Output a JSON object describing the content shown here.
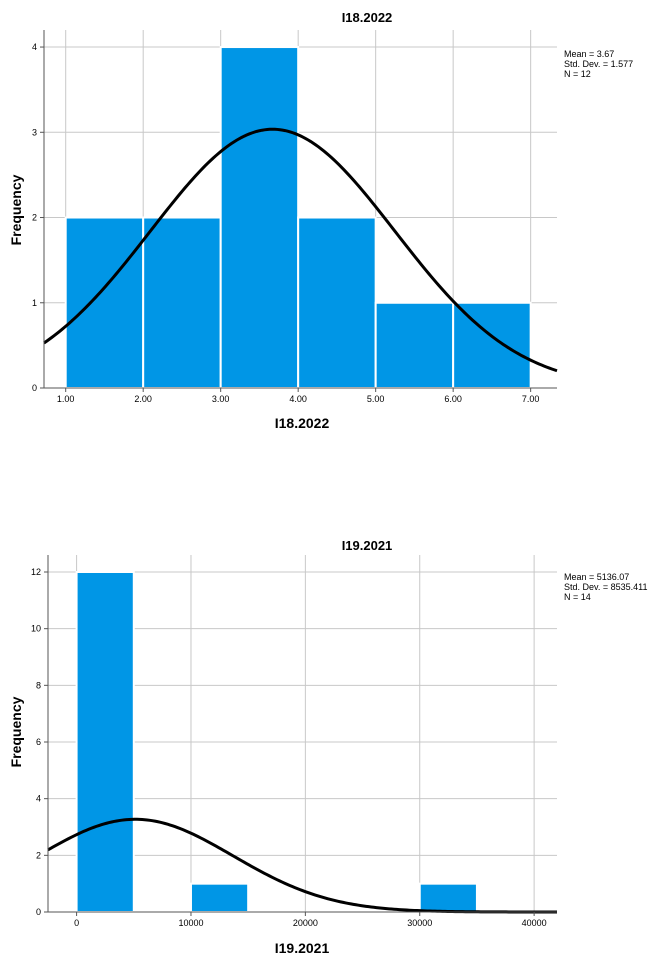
{
  "colors": {
    "bar": "#0096e6",
    "curve": "#000000",
    "grid": "#c8c8c8"
  },
  "chart_data": [
    {
      "type": "bar",
      "subtype": "histogram",
      "title": "I18.2022",
      "xlabel": "I18.2022",
      "ylabel": "Frequency",
      "bins": [
        [
          1,
          2
        ],
        [
          2,
          3
        ],
        [
          3,
          4
        ],
        [
          4,
          5
        ],
        [
          5,
          6
        ],
        [
          6,
          7
        ]
      ],
      "values": [
        2,
        2,
        4,
        2,
        1,
        1
      ],
      "xticks": [
        "1.00",
        "2.00",
        "3.00",
        "4.00",
        "5.00",
        "6.00",
        "7.00"
      ],
      "xtick_values": [
        1,
        2,
        3,
        4,
        5,
        6,
        7
      ],
      "yticks": [
        "0",
        "1",
        "2",
        "3",
        "4"
      ],
      "xlim": [
        0.72,
        7.34
      ],
      "ylim": [
        0,
        4.2
      ],
      "normal_curve": {
        "mean": 3.67,
        "sd": 1.577,
        "n": 12,
        "binwidth": 1
      },
      "stats": [
        "Mean = 3.67",
        "Std. Dev. = 1.577",
        "N = 12"
      ],
      "grid": true,
      "legend": "top-right"
    },
    {
      "type": "bar",
      "subtype": "histogram",
      "title": "I19.2021",
      "xlabel": "I19.2021",
      "ylabel": "Frequency",
      "bins": [
        [
          0,
          5000
        ],
        [
          10000,
          15000
        ],
        [
          30000,
          35000
        ]
      ],
      "values": [
        12,
        1,
        1
      ],
      "xticks": [
        "0",
        "10000",
        "20000",
        "30000",
        "40000"
      ],
      "xtick_values": [
        0,
        10000,
        20000,
        30000,
        40000
      ],
      "yticks": [
        "0",
        "2",
        "4",
        "6",
        "8",
        "10",
        "12"
      ],
      "xlim": [
        -2500,
        42000
      ],
      "ylim": [
        0,
        12.6
      ],
      "normal_curve": {
        "mean": 5136.07,
        "sd": 8535.411,
        "n": 14,
        "binwidth": 5000
      },
      "stats": [
        "Mean = 5136.07",
        "Std. Dev. = 8535.411",
        "N = 14"
      ],
      "grid": true,
      "legend": "top-right"
    }
  ]
}
